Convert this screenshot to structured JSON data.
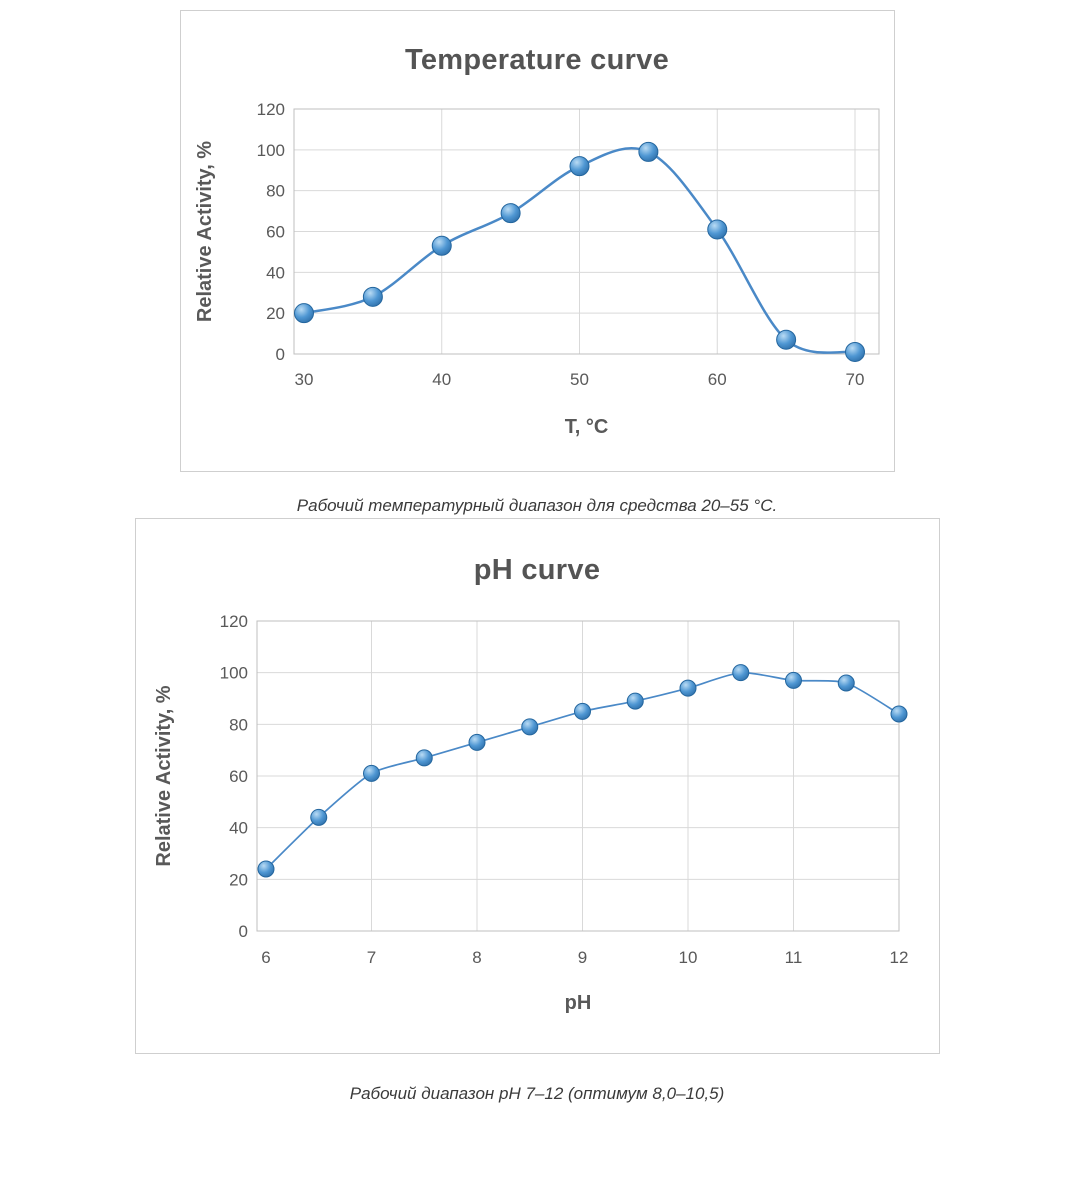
{
  "chart_data": [
    {
      "type": "line",
      "title": "Temperature curve",
      "xlabel": "T, °C",
      "ylabel": "Relative Activity, %",
      "x": [
        30,
        35,
        40,
        45,
        50,
        55,
        60,
        65,
        70
      ],
      "values": [
        20,
        28,
        53,
        69,
        92,
        99,
        61,
        7,
        1
      ],
      "xlim": [
        30,
        70
      ],
      "ylim": [
        0,
        120
      ],
      "xticks": [
        30,
        40,
        50,
        60,
        70
      ],
      "yticks": [
        0,
        20,
        40,
        60,
        80,
        100,
        120
      ],
      "grid": true,
      "legend": false,
      "line_color": "#4a89c7",
      "marker_colors": {
        "highlight": "#b9dbf4",
        "mid": "#4f97d3",
        "edge": "#2766a0",
        "stroke": "#24669e"
      }
    },
    {
      "type": "line",
      "title": "pH curve",
      "xlabel": "pH",
      "ylabel": "Relative Activity, %",
      "x": [
        6,
        6.5,
        7,
        7.5,
        8,
        8.5,
        9,
        9.5,
        10,
        10.5,
        11,
        11.5,
        12
      ],
      "values": [
        24,
        44,
        61,
        67,
        73,
        79,
        85,
        89,
        94,
        100,
        97,
        96,
        84
      ],
      "xlim": [
        6,
        12
      ],
      "ylim": [
        0,
        120
      ],
      "xticks": [
        6,
        7,
        8,
        9,
        10,
        11,
        12
      ],
      "yticks": [
        0,
        20,
        40,
        60,
        80,
        100,
        120
      ],
      "grid": true,
      "legend": false,
      "line_color": "#4a89c7"
    }
  ],
  "captions": [
    "Рабочий температурный диапазон для средства 20–55 °C.",
    "Рабочий диапазон pH 7–12 (оптимум 8,0–10,5)"
  ],
  "colors": {
    "grid": "#d9d9d9",
    "plot_border": "#bfbfbf",
    "tick_text": "#595959",
    "axis_title": "#595959",
    "chart_title": "#545454",
    "caption_text": "#3a3a3a"
  }
}
